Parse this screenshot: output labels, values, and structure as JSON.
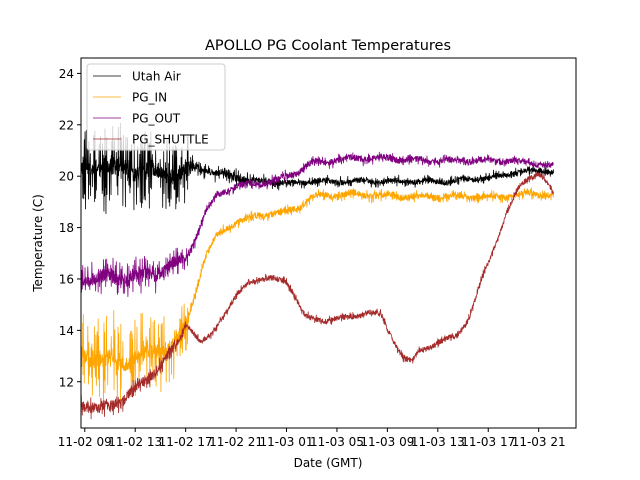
{
  "chart_data": {
    "type": "line",
    "title": "APOLLO PG Coolant Temperatures",
    "xlabel": "Date (GMT)",
    "ylabel": "Temperature (C)",
    "x_unit": "hours since 11-02 00:00 GMT",
    "xlim": [
      8.7,
      47.96
    ],
    "ylim": [
      10.2,
      24.6
    ],
    "grid": false,
    "legend_position": "top-left",
    "x_ticks": [
      {
        "value": 9,
        "label": "11-02 09"
      },
      {
        "value": 13,
        "label": "11-02 13"
      },
      {
        "value": 17,
        "label": "11-02 17"
      },
      {
        "value": 21,
        "label": "11-02 21"
      },
      {
        "value": 25,
        "label": "11-03 01"
      },
      {
        "value": 29,
        "label": "11-03 05"
      },
      {
        "value": 33,
        "label": "11-03 09"
      },
      {
        "value": 37,
        "label": "11-03 13"
      },
      {
        "value": 41,
        "label": "11-03 17"
      },
      {
        "value": 45,
        "label": "11-03 21"
      }
    ],
    "y_ticks": [
      {
        "value": 12,
        "label": "12"
      },
      {
        "value": 14,
        "label": "14"
      },
      {
        "value": 16,
        "label": "16"
      },
      {
        "value": 18,
        "label": "18"
      },
      {
        "value": 20,
        "label": "20"
      },
      {
        "value": 22,
        "label": "22"
      },
      {
        "value": 24,
        "label": "24"
      }
    ],
    "series": [
      {
        "name": "Utah Air",
        "color": "#000000",
        "x": [
          8.7,
          10,
          12,
          14,
          16,
          17.2,
          17.5,
          18.5,
          19.5,
          21,
          22,
          23.5,
          25,
          27,
          30,
          33,
          36,
          38,
          40,
          42,
          43.5,
          45,
          46.2
        ],
        "y": [
          20.2,
          20.4,
          20.3,
          20.2,
          20.1,
          20.1,
          20.4,
          20.3,
          20.1,
          20.0,
          19.8,
          19.8,
          19.7,
          19.8,
          19.8,
          19.8,
          19.8,
          19.8,
          19.9,
          20.0,
          20.2,
          20.2,
          20.2
        ],
        "noise": [
          0.3,
          0.3,
          0.3,
          0.3,
          0.3,
          0.3,
          0.14,
          0.14,
          0.14,
          0.14,
          0.12,
          0.12,
          0.1,
          0.1,
          0.1,
          0.1,
          0.1,
          0.1,
          0.1,
          0.1,
          0.1,
          0.1,
          0.1
        ],
        "spike": [
          1.6,
          1.6,
          1.6,
          1.5,
          1.4,
          1.4,
          0.3,
          0.3,
          0.3,
          0.3,
          0.2,
          0.2,
          0.15,
          0.15,
          0.15,
          0.15,
          0.15,
          0.15,
          0.15,
          0.15,
          0.15,
          0.15,
          0.15
        ]
      },
      {
        "name": "PG_IN",
        "color": "#ffa500",
        "x": [
          8.7,
          10,
          12,
          14,
          16,
          17,
          17.6,
          18.5,
          19.5,
          21,
          23,
          25,
          26,
          27,
          30,
          35,
          40,
          42,
          44,
          46.2
        ],
        "y": [
          13.0,
          12.9,
          12.8,
          13.1,
          13.4,
          14.0,
          15.2,
          16.8,
          17.7,
          18.2,
          18.5,
          18.6,
          18.8,
          19.2,
          19.3,
          19.2,
          19.2,
          19.2,
          19.3,
          19.3
        ],
        "noise": [
          0.3,
          0.3,
          0.3,
          0.3,
          0.3,
          0.3,
          0.15,
          0.12,
          0.12,
          0.12,
          0.12,
          0.12,
          0.12,
          0.12,
          0.12,
          0.12,
          0.12,
          0.12,
          0.12,
          0.12
        ],
        "spike": [
          1.6,
          1.6,
          1.5,
          1.4,
          1.3,
          1.0,
          0.2,
          0.15,
          0.15,
          0.15,
          0.15,
          0.15,
          0.15,
          0.15,
          0.15,
          0.15,
          0.15,
          0.15,
          0.15,
          0.15
        ]
      },
      {
        "name": "PG_OUT",
        "color": "#800080",
        "x": [
          8.7,
          10,
          12,
          14,
          15.5,
          17,
          17.8,
          18.5,
          19.5,
          21,
          24,
          26,
          27,
          30,
          33,
          36,
          40,
          43,
          46.2
        ],
        "y": [
          16.0,
          16.1,
          16.0,
          16.2,
          16.4,
          16.8,
          17.6,
          18.5,
          19.3,
          19.6,
          19.8,
          20.2,
          20.5,
          20.7,
          20.7,
          20.6,
          20.6,
          20.6,
          20.4
        ],
        "noise": [
          0.25,
          0.25,
          0.25,
          0.25,
          0.25,
          0.2,
          0.15,
          0.12,
          0.12,
          0.12,
          0.12,
          0.12,
          0.12,
          0.12,
          0.12,
          0.12,
          0.12,
          0.1,
          0.1
        ],
        "spike": [
          0.6,
          0.6,
          0.6,
          0.6,
          0.5,
          0.4,
          0.2,
          0.15,
          0.15,
          0.15,
          0.15,
          0.15,
          0.15,
          0.15,
          0.15,
          0.15,
          0.15,
          0.1,
          0.1
        ]
      },
      {
        "name": "PG_SHUTTLE",
        "color": "#a52a2a",
        "x": [
          8.7,
          10,
          12,
          13.5,
          15,
          16.5,
          17,
          17.5,
          18.2,
          19,
          20,
          21,
          22,
          23,
          24,
          25,
          25.5,
          26.5,
          28,
          30,
          31.5,
          32.5,
          33.5,
          34.3,
          35,
          35.5,
          37,
          38.5,
          39.5,
          40.5,
          41.5,
          42.5,
          43.5,
          44.3,
          45,
          45.6,
          46.2
        ],
        "y": [
          11.2,
          10.9,
          11.3,
          11.9,
          12.6,
          13.6,
          14.3,
          14.0,
          13.5,
          13.8,
          14.6,
          15.3,
          15.9,
          16.0,
          16.0,
          15.9,
          15.5,
          14.5,
          14.4,
          14.5,
          14.7,
          14.6,
          13.6,
          12.9,
          12.8,
          13.2,
          13.5,
          13.8,
          14.5,
          16.0,
          17.3,
          18.6,
          19.6,
          20.0,
          20.1,
          19.8,
          19.3
        ],
        "noise": [
          0.18,
          0.2,
          0.2,
          0.2,
          0.18,
          0.15,
          0.12,
          0.1,
          0.1,
          0.1,
          0.1,
          0.1,
          0.1,
          0.1,
          0.1,
          0.1,
          0.1,
          0.1,
          0.1,
          0.1,
          0.1,
          0.1,
          0.1,
          0.1,
          0.1,
          0.1,
          0.1,
          0.1,
          0.1,
          0.1,
          0.1,
          0.1,
          0.1,
          0.1,
          0.1,
          0.1,
          0.1
        ],
        "spike": [
          0.3,
          0.3,
          0.3,
          0.3,
          0.3,
          0.2,
          0.1,
          0.1,
          0.1,
          0.1,
          0.1,
          0.1,
          0.1,
          0.1,
          0.1,
          0.1,
          0.1,
          0.1,
          0.1,
          0.1,
          0.1,
          0.1,
          0.1,
          0.1,
          0.1,
          0.1,
          0.1,
          0.1,
          0.1,
          0.1,
          0.1,
          0.1,
          0.1,
          0.1,
          0.1,
          0.1,
          0.1
        ]
      }
    ],
    "legend": [
      {
        "label": "Utah Air",
        "color": "#000000"
      },
      {
        "label": "PG_IN",
        "color": "#ffa500"
      },
      {
        "label": "PG_OUT",
        "color": "#800080"
      },
      {
        "label": "PG_SHUTTLE",
        "color": "#a52a2a"
      }
    ]
  }
}
